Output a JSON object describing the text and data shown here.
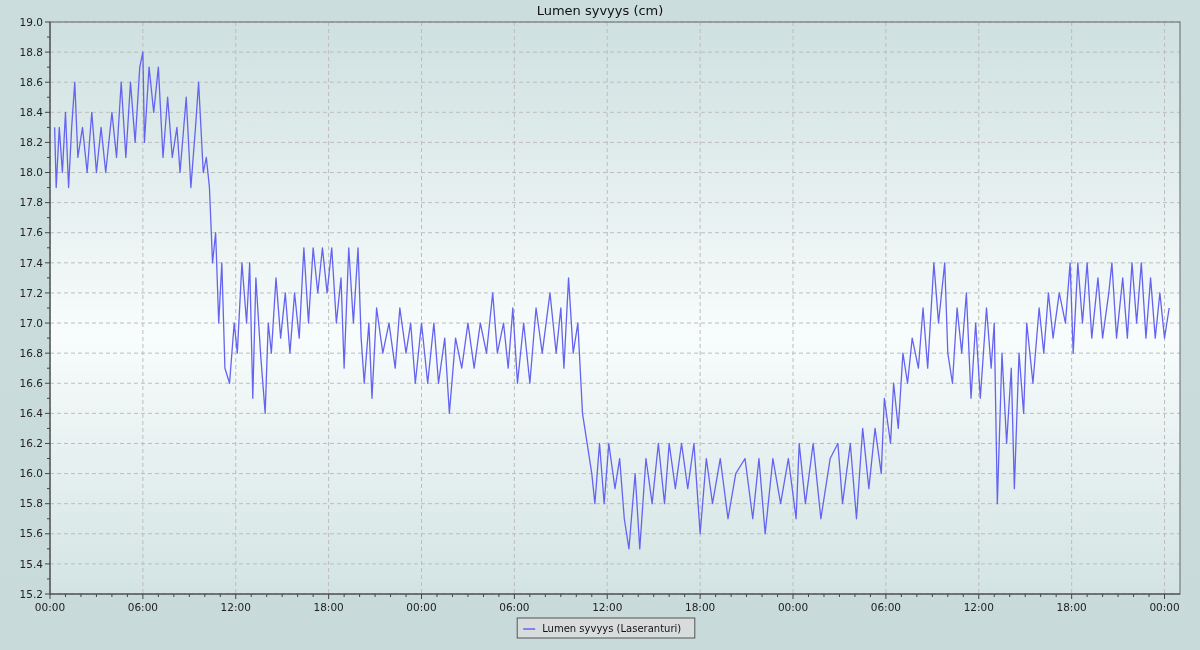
{
  "chart_data": {
    "type": "line",
    "title": "Lumen syvyys (cm)",
    "x": [
      "--01-01T00:18",
      "--01-01T00:24",
      "--01-01T00:36",
      "--01-01T00:48",
      "--01-01T01:00",
      "--01-01T01:12",
      "--01-01T01:24",
      "--01-01T01:36",
      "--01-01T01:48",
      "--01-01T02:06",
      "--01-01T02:24",
      "--01-01T02:42",
      "--01-01T03:00",
      "--01-01T03:18",
      "--01-01T03:36",
      "--01-01T04:00",
      "--01-01T04:18",
      "--01-01T04:36",
      "--01-01T04:54",
      "--01-01T05:12",
      "--01-01T05:30",
      "--01-01T05:48",
      "--01-01T06:00",
      "--01-01T06:06",
      "--01-01T06:24",
      "--01-01T06:42",
      "--01-01T07:00",
      "--01-01T07:18",
      "--01-01T07:36",
      "--01-01T07:54",
      "--01-01T08:12",
      "--01-01T08:24",
      "--01-01T08:48",
      "--01-01T09:06",
      "--01-01T09:24",
      "--01-01T09:36",
      "--01-01T09:54",
      "--01-01T10:06",
      "--01-01T10:18",
      "--01-01T10:30",
      "--01-01T10:42",
      "--01-01T10:54",
      "--01-01T11:06",
      "--01-01T11:18",
      "--01-01T11:36",
      "--01-01T11:54",
      "--01-01T12:06",
      "--01-01T12:24",
      "--01-01T12:42",
      "--01-01T12:54",
      "--01-01T13:06",
      "--01-01T13:18",
      "--01-01T13:36",
      "--01-01T13:54",
      "--01-01T14:06",
      "--01-01T14:18",
      "--01-01T14:36",
      "--01-01T14:54",
      "--01-01T15:12",
      "--01-01T15:30",
      "--01-01T15:48",
      "--01-01T16:06",
      "--01-01T16:24",
      "--01-01T16:42",
      "--01-01T17:00",
      "--01-01T17:18",
      "--01-01T17:36",
      "--01-01T17:54",
      "--01-01T18:12",
      "--01-01T18:30",
      "--01-01T18:48",
      "--01-01T19:00",
      "--01-01T19:18",
      "--01-01T19:36",
      "--01-01T19:54",
      "--01-01T20:06",
      "--01-01T20:18",
      "--01-01T20:36",
      "--01-01T20:48",
      "--01-01T21:06",
      "--01-01T21:30",
      "--01-01T21:54",
      "--01-01T22:18",
      "--01-01T22:36",
      "--01-01T23:00",
      "--01-01T23:18",
      "--01-01T23:36",
      "--01-02T00:00",
      "--01-02T00:24",
      "--01-02T00:48",
      "--01-02T01:06",
      "--01-02T01:30",
      "--01-02T01:48",
      "--01-02T02:12",
      "--01-02T02:36",
      "--01-02T03:00",
      "--01-02T03:24",
      "--01-02T03:48",
      "--01-02T04:12",
      "--01-02T04:36",
      "--01-02T04:54",
      "--01-02T05:18",
      "--01-02T05:36",
      "--01-02T05:54",
      "--01-02T06:12",
      "--01-02T06:36",
      "--01-02T07:00",
      "--01-02T07:24",
      "--01-02T07:48",
      "--01-02T08:18",
      "--01-02T08:42",
      "--01-02T09:00",
      "--01-02T09:12",
      "--01-02T09:30",
      "--01-02T09:48",
      "--01-02T10:06",
      "--01-02T10:24",
      "--01-02T10:42",
      "--01-02T11:00",
      "--01-02T11:12",
      "--01-02T11:30",
      "--01-02T11:48",
      "--01-02T12:06",
      "--01-02T12:30",
      "--01-02T12:48",
      "--01-02T13:06",
      "--01-02T13:24",
      "--01-02T13:48",
      "--01-02T14:06",
      "--01-02T14:30",
      "--01-02T14:54",
      "--01-02T15:18",
      "--01-02T15:42",
      "--01-02T16:00",
      "--01-02T16:24",
      "--01-02T16:48",
      "--01-02T17:12",
      "--01-02T17:36",
      "--01-02T18:00",
      "--01-02T18:24",
      "--01-02T18:48",
      "--01-02T19:18",
      "--01-02T19:48",
      "--01-02T20:18",
      "--01-02T20:54",
      "--01-02T21:24",
      "--01-02T21:48",
      "--01-02T22:12",
      "--01-02T22:42",
      "--01-02T23:12",
      "--01-02T23:42",
      "--01-03T00:12",
      "--01-03T00:24",
      "--01-03T00:48",
      "--01-03T01:18",
      "--01-03T01:48",
      "--01-03T02:24",
      "--01-03T02:54",
      "--01-03T03:12",
      "--01-03T03:42",
      "--01-03T04:06",
      "--01-03T04:30",
      "--01-03T04:54",
      "--01-03T05:18",
      "--01-03T05:42",
      "--01-03T05:54",
      "--01-03T06:18",
      "--01-03T06:30",
      "--01-03T06:48",
      "--01-03T07:06",
      "--01-03T07:24",
      "--01-03T07:42",
      "--01-03T08:06",
      "--01-03T08:24",
      "--01-03T08:42",
      "--01-03T09:06",
      "--01-03T09:24",
      "--01-03T09:48",
      "--01-03T10:00",
      "--01-03T10:18",
      "--01-03T10:36",
      "--01-03T10:54",
      "--01-03T11:12",
      "--01-03T11:30",
      "--01-03T11:48",
      "--01-03T12:06",
      "--01-03T12:30",
      "--01-03T12:48",
      "--01-03T13:00",
      "--01-03T13:12",
      "--01-03T13:30",
      "--01-03T13:48",
      "--01-03T14:06",
      "--01-03T14:18",
      "--01-03T14:36",
      "--01-03T14:54",
      "--01-03T15:06",
      "--01-03T15:30",
      "--01-03T15:54",
      "--01-03T16:12",
      "--01-03T16:30",
      "--01-03T16:48",
      "--01-03T17:12",
      "--01-03T17:36",
      "--01-03T17:54",
      "--01-03T18:06",
      "--01-03T18:24",
      "--01-03T18:42",
      "--01-03T19:00",
      "--01-03T19:18",
      "--01-03T19:42",
      "--01-03T20:00",
      "--01-03T20:24",
      "--01-03T20:36",
      "--01-03T20:54",
      "--01-03T21:18",
      "--01-03T21:36",
      "--01-03T21:54",
      "--01-03T22:12",
      "--01-03T22:30",
      "--01-03T22:48",
      "--01-03T23:06",
      "--01-03T23:24",
      "--01-03T23:42",
      "--01-04T00:00",
      "--01-04T00:18"
    ],
    "series": [
      {
        "name": "Lumen syvyys (Laseranturi)",
        "color": "#6464f0",
        "values": [
          18.3,
          17.9,
          18.3,
          18.0,
          18.4,
          17.9,
          18.3,
          18.6,
          18.1,
          18.3,
          18.0,
          18.4,
          18.0,
          18.3,
          18.0,
          18.4,
          18.1,
          18.6,
          18.1,
          18.6,
          18.2,
          18.7,
          18.8,
          18.2,
          18.7,
          18.4,
          18.7,
          18.1,
          18.5,
          18.1,
          18.3,
          18.0,
          18.5,
          17.9,
          18.3,
          18.6,
          18.0,
          18.1,
          17.9,
          17.4,
          17.6,
          17.0,
          17.4,
          16.7,
          16.6,
          17.0,
          16.8,
          17.4,
          17.0,
          17.4,
          16.5,
          17.3,
          16.8,
          16.4,
          17.0,
          16.8,
          17.3,
          16.9,
          17.2,
          16.8,
          17.2,
          16.9,
          17.5,
          17.0,
          17.5,
          17.2,
          17.5,
          17.2,
          17.5,
          17.0,
          17.3,
          16.7,
          17.5,
          17.0,
          17.5,
          16.9,
          16.6,
          17.0,
          16.5,
          17.1,
          16.8,
          17.0,
          16.7,
          17.1,
          16.8,
          17.0,
          16.6,
          17.0,
          16.6,
          17.0,
          16.6,
          16.9,
          16.4,
          16.9,
          16.7,
          17.0,
          16.7,
          17.0,
          16.8,
          17.2,
          16.8,
          17.0,
          16.7,
          17.1,
          16.6,
          17.0,
          16.6,
          17.1,
          16.8,
          17.2,
          16.8,
          17.1,
          16.7,
          17.3,
          16.8,
          17.0,
          16.4,
          16.2,
          16.0,
          15.8,
          16.2,
          15.8,
          16.2,
          15.9,
          16.1,
          15.7,
          15.5,
          16.0,
          15.5,
          16.1,
          15.8,
          16.2,
          15.8,
          16.2,
          15.9,
          16.2,
          15.9,
          16.2,
          15.6,
          16.1,
          15.8,
          16.1,
          15.7,
          16.0,
          16.1,
          15.7,
          16.1,
          15.6,
          16.1,
          15.8,
          16.1,
          15.7,
          16.2,
          15.8,
          16.2,
          15.7,
          16.1,
          16.2,
          15.8,
          16.2,
          15.7,
          16.3,
          15.9,
          16.3,
          16.0,
          16.5,
          16.2,
          16.6,
          16.3,
          16.8,
          16.6,
          16.9,
          16.7,
          17.1,
          16.7,
          17.4,
          17.0,
          17.4,
          16.8,
          16.6,
          17.1,
          16.8,
          17.2,
          16.5,
          17.0,
          16.5,
          17.1,
          16.7,
          17.0,
          15.8,
          16.8,
          16.2,
          16.7,
          15.9,
          16.8,
          16.4,
          17.0,
          16.6,
          17.1,
          16.8,
          17.2,
          16.9,
          17.2,
          17.0,
          17.4,
          16.8,
          17.4,
          17.0,
          17.4,
          16.9,
          17.3,
          16.9,
          17.2,
          17.4,
          16.9,
          17.3,
          16.9,
          17.4,
          17.0,
          17.4,
          16.9,
          17.3,
          16.9,
          17.2,
          16.9,
          17.1
        ]
      }
    ],
    "xlim": [
      "--01-01T00:00",
      "--01-04T01:00"
    ],
    "xticks": [
      {
        "value": "--01-01T00:00",
        "label": "00:00"
      },
      {
        "value": "--01-01T01:00",
        "label": null
      },
      {
        "value": "--01-01T02:00",
        "label": null
      },
      {
        "value": "--01-01T03:00",
        "label": null
      },
      {
        "value": "--01-01T04:00",
        "label": null
      },
      {
        "value": "--01-01T05:00",
        "label": null
      },
      {
        "value": "--01-01T06:00",
        "label": "06:00"
      },
      {
        "value": "--01-01T07:00",
        "label": null
      },
      {
        "value": "--01-01T08:00",
        "label": null
      },
      {
        "value": "--01-01T09:00",
        "label": null
      },
      {
        "value": "--01-01T10:00",
        "label": null
      },
      {
        "value": "--01-01T11:00",
        "label": null
      },
      {
        "value": "--01-01T12:00",
        "label": "12:00"
      },
      {
        "value": "--01-01T13:00",
        "label": null
      },
      {
        "value": "--01-01T14:00",
        "label": null
      },
      {
        "value": "--01-01T15:00",
        "label": null
      },
      {
        "value": "--01-01T16:00",
        "label": null
      },
      {
        "value": "--01-01T17:00",
        "label": null
      },
      {
        "value": "--01-01T18:00",
        "label": "18:00"
      },
      {
        "value": "--01-01T19:00",
        "label": null
      },
      {
        "value": "--01-01T20:00",
        "label": null
      },
      {
        "value": "--01-01T21:00",
        "label": null
      },
      {
        "value": "--01-01T22:00",
        "label": null
      },
      {
        "value": "--01-01T23:00",
        "label": null
      },
      {
        "value": "--01-02T00:00",
        "label": "00:00"
      },
      {
        "value": "--01-02T01:00",
        "label": null
      },
      {
        "value": "--01-02T02:00",
        "label": null
      },
      {
        "value": "--01-02T03:00",
        "label": null
      },
      {
        "value": "--01-02T04:00",
        "label": null
      },
      {
        "value": "--01-02T05:00",
        "label": null
      },
      {
        "value": "--01-02T06:00",
        "label": "06:00"
      },
      {
        "value": "--01-02T07:00",
        "label": null
      },
      {
        "value": "--01-02T08:00",
        "label": null
      },
      {
        "value": "--01-02T09:00",
        "label": null
      },
      {
        "value": "--01-02T10:00",
        "label": null
      },
      {
        "value": "--01-02T11:00",
        "label": null
      },
      {
        "value": "--01-02T12:00",
        "label": "12:00"
      },
      {
        "value": "--01-02T13:00",
        "label": null
      },
      {
        "value": "--01-02T14:00",
        "label": null
      },
      {
        "value": "--01-02T15:00",
        "label": null
      },
      {
        "value": "--01-02T16:00",
        "label": null
      },
      {
        "value": "--01-02T17:00",
        "label": null
      },
      {
        "value": "--01-02T18:00",
        "label": "18:00"
      },
      {
        "value": "--01-02T19:00",
        "label": null
      },
      {
        "value": "--01-02T20:00",
        "label": null
      },
      {
        "value": "--01-02T21:00",
        "label": null
      },
      {
        "value": "--01-02T22:00",
        "label": null
      },
      {
        "value": "--01-02T23:00",
        "label": null
      },
      {
        "value": "--01-03T00:00",
        "label": "00:00"
      },
      {
        "value": "--01-03T01:00",
        "label": null
      },
      {
        "value": "--01-03T02:00",
        "label": null
      },
      {
        "value": "--01-03T03:00",
        "label": null
      },
      {
        "value": "--01-03T04:00",
        "label": null
      },
      {
        "value": "--01-03T05:00",
        "label": null
      },
      {
        "value": "--01-03T06:00",
        "label": "06:00"
      },
      {
        "value": "--01-03T07:00",
        "label": null
      },
      {
        "value": "--01-03T08:00",
        "label": null
      },
      {
        "value": "--01-03T09:00",
        "label": null
      },
      {
        "value": "--01-03T10:00",
        "label": null
      },
      {
        "value": "--01-03T11:00",
        "label": null
      },
      {
        "value": "--01-03T12:00",
        "label": "12:00"
      },
      {
        "value": "--01-03T13:00",
        "label": null
      },
      {
        "value": "--01-03T14:00",
        "label": null
      },
      {
        "value": "--01-03T15:00",
        "label": null
      },
      {
        "value": "--01-03T16:00",
        "label": null
      },
      {
        "value": "--01-03T17:00",
        "label": null
      },
      {
        "value": "--01-03T18:00",
        "label": "18:00"
      },
      {
        "value": "--01-03T19:00",
        "label": null
      },
      {
        "value": "--01-03T20:00",
        "label": null
      },
      {
        "value": "--01-03T21:00",
        "label": null
      },
      {
        "value": "--01-03T22:00",
        "label": null
      },
      {
        "value": "--01-03T23:00",
        "label": null
      },
      {
        "value": "--01-04T00:00",
        "label": "00:00"
      }
    ],
    "ylim": [
      15.2,
      19.0
    ],
    "yticks": [
      15.2,
      {
        "value": 15.3,
        "label": null
      },
      15.4,
      {
        "value": 15.5,
        "label": null
      },
      15.6,
      {
        "value": 15.7,
        "label": null
      },
      15.8,
      {
        "value": 15.9,
        "label": null
      },
      {
        "value": 16,
        "label": "16.0"
      },
      {
        "value": 16.1,
        "label": null
      },
      16.2,
      {
        "value": 16.3,
        "label": null
      },
      16.4,
      {
        "value": 16.5,
        "label": null
      },
      16.6,
      {
        "value": 16.7,
        "label": null
      },
      16.8,
      {
        "value": 16.9,
        "label": null
      },
      {
        "value": 17,
        "label": "17.0"
      },
      {
        "value": 17.1,
        "label": null
      },
      17.2,
      {
        "value": 17.3,
        "label": null
      },
      17.4,
      {
        "value": 17.5,
        "label": null
      },
      17.6,
      {
        "value": 17.7,
        "label": null
      },
      17.8,
      {
        "value": 17.9,
        "label": null
      },
      {
        "value": 18,
        "label": "18.0"
      },
      {
        "value": 18.1,
        "label": null
      },
      18.2,
      {
        "value": 18.3,
        "label": null
      },
      18.4,
      {
        "value": 18.5,
        "label": null
      },
      18.6,
      {
        "value": 18.7,
        "label": null
      },
      18.8,
      {
        "value": 18.9,
        "label": null
      },
      {
        "value": 19,
        "label": "19.0"
      }
    ],
    "grid": true,
    "legend": "bottom"
  }
}
